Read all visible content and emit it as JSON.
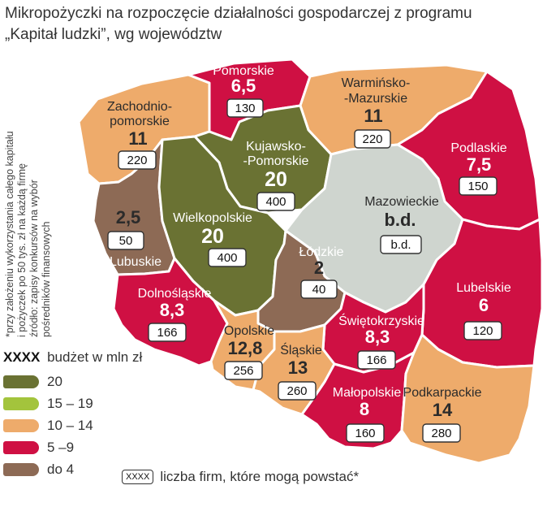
{
  "title": {
    "line1": "Mikropożyczki na rozpoczęcie działalności gospodarczej z programu",
    "line2": "„Kapitał ludzki”, wg województw"
  },
  "sidenote": {
    "line1": "*przy założeniu wykorzystania całego kapitału",
    "line2": "i pożyczek po 50 tys. zł na każdą firmę",
    "line3": "źródło: zapisy konkursów na wybór",
    "line4": "pośredników finansowych"
  },
  "colors": {
    "v20": "#6a7233",
    "v15_19": "#a3c43c",
    "v10_14": "#eeab6b",
    "v5_9": "#cf1043",
    "do4": "#8d6a55",
    "nodata": "#cfd5cf",
    "border": "#ffffff",
    "text_on_dark": "#ffffff",
    "text_on_light": "#2b2b2b"
  },
  "regions": {
    "zachodniopomorskie": {
      "name1": "Zachodnio-",
      "name2": "pomorskie",
      "value": "11",
      "firms": "220"
    },
    "pomorskie": {
      "name": "Pomorskie",
      "value": "6,5",
      "firms": "130"
    },
    "warminsko": {
      "name1": "Warmińsko-",
      "name2": "-Mazurskie",
      "value": "11",
      "firms": "220"
    },
    "podlaskie": {
      "name": "Podlaskie",
      "value": "7,5",
      "firms": "150"
    },
    "kujawsko": {
      "name1": "Kujawsko-",
      "name2": "-Pomorskie",
      "value": "20",
      "firms": "400"
    },
    "lubuskie": {
      "name": "Lubuskie",
      "value": "2,5",
      "firms": "50"
    },
    "wielkopolskie": {
      "name": "Wielkopolskie",
      "value": "20",
      "firms": "400"
    },
    "mazowieckie": {
      "name": "Mazowieckie",
      "value": "b.d.",
      "firms": "b.d."
    },
    "lodzkie": {
      "name": "Łódzkie",
      "value": "2",
      "firms": "40"
    },
    "lubelskie": {
      "name": "Lubelskie",
      "value": "6",
      "firms": "120"
    },
    "dolnoslaskie": {
      "name": "Dolnośląskie",
      "value": "8,3",
      "firms": "166"
    },
    "swietokrzyskie": {
      "name": "Świętokrzyskie",
      "value": "8,3",
      "firms": "166"
    },
    "opolskie": {
      "name": "Opolskie",
      "value": "12,8",
      "firms": "256"
    },
    "slaskie": {
      "name": "Śląskie",
      "value": "13",
      "firms": "260"
    },
    "malopolskie": {
      "name": "Małopolskie",
      "value": "8",
      "firms": "160"
    },
    "podkarpackie": {
      "name": "Podkarpackie",
      "value": "14",
      "firms": "280"
    }
  },
  "legend": {
    "title_bold": "XXXX",
    "title_text": "budżet w mln zł",
    "items": [
      {
        "label": "20"
      },
      {
        "label": "15 – 19"
      },
      {
        "label": "10 – 14"
      },
      {
        "label": "5 –9"
      },
      {
        "label": "do 4"
      }
    ],
    "box_sample": "XXXX",
    "box_text": "liczba firm, które mogą powstać*"
  }
}
